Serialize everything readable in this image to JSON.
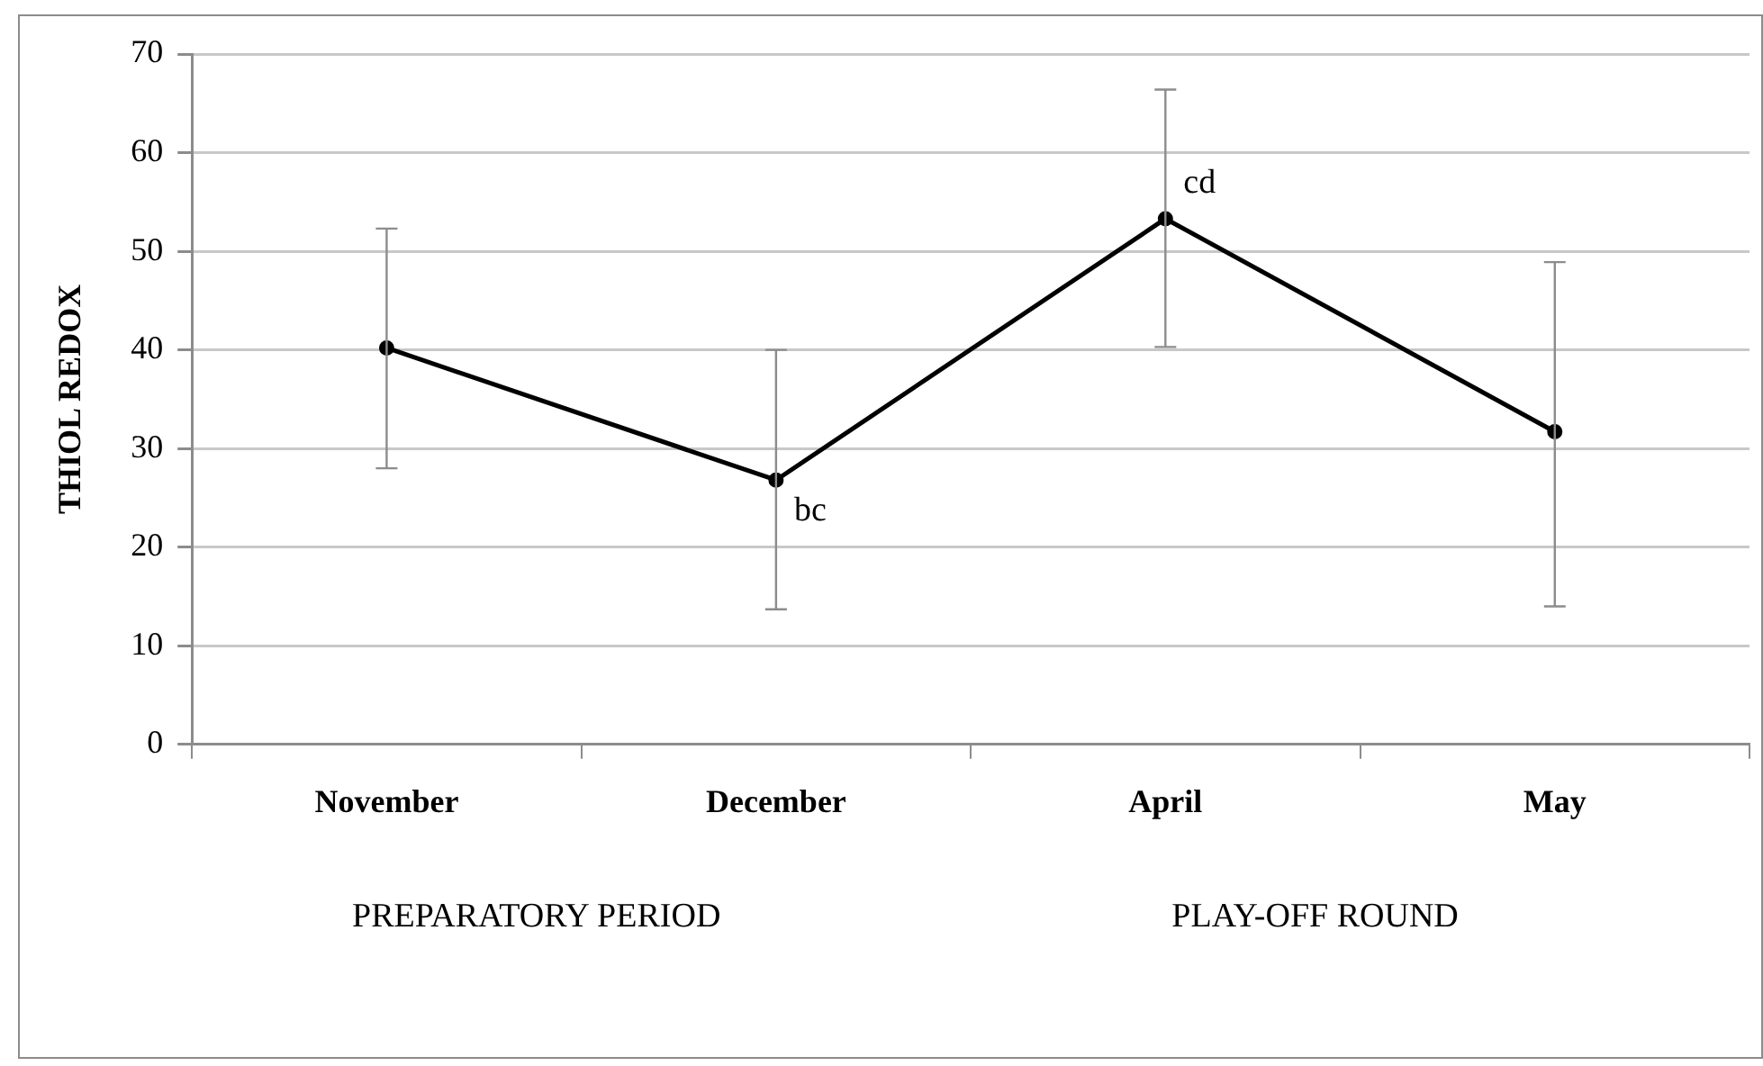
{
  "chart_data": {
    "type": "line",
    "ylabel": "THIOL REDOX",
    "categories": [
      "November",
      "December",
      "April",
      "May"
    ],
    "series": [
      {
        "color": "#000000",
        "values": [
          40.2,
          26.8,
          53.3,
          31.7
        ],
        "errors": [
          [
            28,
            52.3
          ],
          [
            13.7,
            40
          ],
          [
            40.3,
            66.4
          ],
          [
            14,
            48.9
          ]
        ]
      }
    ],
    "ylim": [
      0,
      70
    ],
    "yticks": [
      0,
      10,
      20,
      30,
      40,
      50,
      60,
      70
    ],
    "grid": "y",
    "legend": false,
    "marker": "circle",
    "line_style": "solid",
    "annotations": [
      {
        "text": "bc",
        "x": "December",
        "y": 26.8
      },
      {
        "text": "cd",
        "x": "April",
        "y": 53.3
      },
      "PREPARATORY PERIOD",
      "PLAY-OFF ROUND"
    ]
  }
}
